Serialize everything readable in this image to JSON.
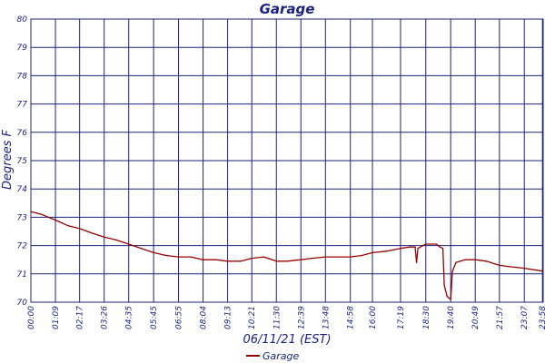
{
  "chart_data": {
    "type": "line",
    "title": "Garage",
    "xlabel": "06/11/21 (EST)",
    "ylabel": "Degrees F",
    "ylim": [
      70,
      80
    ],
    "yticks": [
      "70",
      "71",
      "72",
      "73",
      "74",
      "75",
      "76",
      "77",
      "78",
      "79",
      "80"
    ],
    "xticks": [
      "00:00",
      "01:09",
      "02:17",
      "03:26",
      "04:35",
      "05:45",
      "06:55",
      "08:04",
      "09:13",
      "10:21",
      "11:30",
      "12:39",
      "13:48",
      "14:58",
      "16:00",
      "17:19",
      "18:30",
      "19:40",
      "20:49",
      "21:57",
      "23:07",
      "23:58"
    ],
    "grid": true,
    "legend": {
      "position": "bottom-center"
    },
    "series": [
      {
        "name": "Garage",
        "color": "#990000",
        "points": [
          [
            "00:00",
            73.2
          ],
          [
            "00:30",
            73.1
          ],
          [
            "01:09",
            72.9
          ],
          [
            "01:45",
            72.7
          ],
          [
            "02:17",
            72.6
          ],
          [
            "02:50",
            72.45
          ],
          [
            "03:26",
            72.3
          ],
          [
            "04:00",
            72.2
          ],
          [
            "04:35",
            72.05
          ],
          [
            "05:10",
            71.9
          ],
          [
            "05:45",
            71.75
          ],
          [
            "06:20",
            71.65
          ],
          [
            "06:55",
            71.6
          ],
          [
            "07:30",
            71.6
          ],
          [
            "08:04",
            71.5
          ],
          [
            "08:40",
            71.5
          ],
          [
            "09:13",
            71.45
          ],
          [
            "09:50",
            71.45
          ],
          [
            "10:21",
            71.55
          ],
          [
            "10:55",
            71.6
          ],
          [
            "11:30",
            71.45
          ],
          [
            "12:00",
            71.45
          ],
          [
            "12:39",
            71.5
          ],
          [
            "13:10",
            71.55
          ],
          [
            "13:48",
            71.6
          ],
          [
            "14:20",
            71.6
          ],
          [
            "14:58",
            71.6
          ],
          [
            "15:30",
            71.65
          ],
          [
            "16:00",
            71.75
          ],
          [
            "16:40",
            71.8
          ],
          [
            "17:19",
            71.9
          ],
          [
            "17:45",
            71.95
          ],
          [
            "18:00",
            71.95
          ],
          [
            "18:04",
            71.4
          ],
          [
            "18:08",
            71.9
          ],
          [
            "18:30",
            72.05
          ],
          [
            "19:00",
            72.05
          ],
          [
            "19:10",
            71.95
          ],
          [
            "19:18",
            71.9
          ],
          [
            "19:22",
            70.6
          ],
          [
            "19:30",
            70.2
          ],
          [
            "19:40",
            70.1
          ],
          [
            "19:45",
            71.1
          ],
          [
            "19:55",
            71.4
          ],
          [
            "20:20",
            71.5
          ],
          [
            "20:49",
            71.5
          ],
          [
            "21:20",
            71.45
          ],
          [
            "21:57",
            71.3
          ],
          [
            "22:30",
            71.25
          ],
          [
            "23:07",
            71.2
          ],
          [
            "23:58",
            71.1
          ]
        ]
      }
    ]
  }
}
